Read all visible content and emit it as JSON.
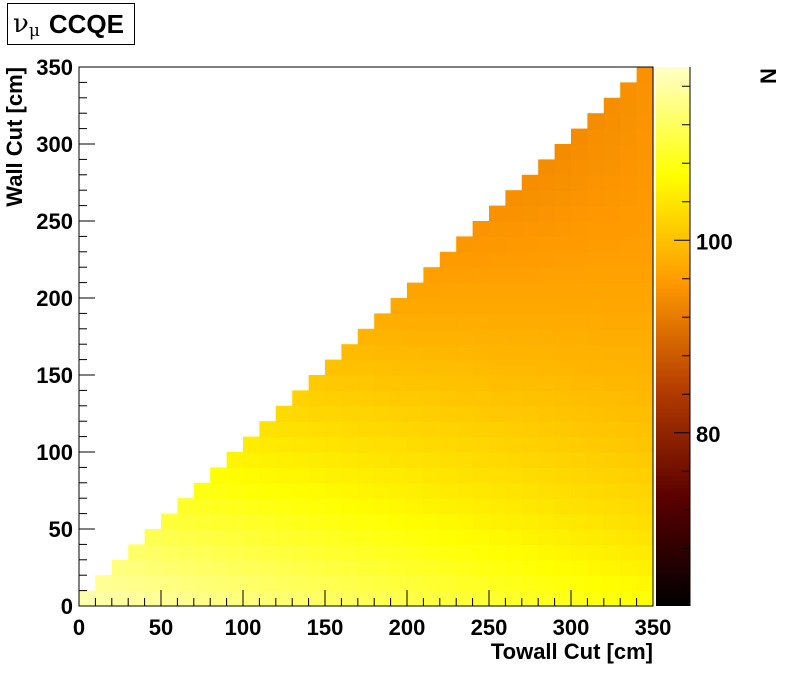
{
  "title": {
    "symbol": "ν",
    "subscript": "μ",
    "text": "CCQE"
  },
  "chart_data": {
    "type": "heatmap",
    "xlabel": "Towall Cut [cm]",
    "ylabel": "Wall Cut [cm]",
    "zlabel": "N",
    "xlim": [
      0,
      350
    ],
    "ylim": [
      0,
      350
    ],
    "zlim": [
      62,
      118
    ],
    "x_ticks": [
      0,
      50,
      100,
      150,
      200,
      250,
      300,
      350
    ],
    "y_ticks": [
      0,
      50,
      100,
      150,
      200,
      250,
      300,
      350
    ],
    "z_ticks": [
      80,
      100
    ],
    "x_tick_labels": [
      "0",
      "50",
      "100",
      "150",
      "200",
      "250",
      "300",
      "350"
    ],
    "y_tick_labels": [
      "0",
      "50",
      "100",
      "150",
      "200",
      "250",
      "300",
      "350"
    ],
    "z_tick_labels": [
      "80",
      "100"
    ],
    "colormap": "hot (black - dark red - orange - yellow - white)",
    "colormap_stops": [
      "#000000",
      "#5a0000",
      "#b43c00",
      "#ff9900",
      "#ffff00",
      "#ffffc8"
    ],
    "bin_width": 10,
    "region": "upper-left triangle (Wall > Towall) is empty",
    "cell_function": {
      "form": "N = z0 - a*wall - b*towall + c*towall*(wall/350)^1.5",
      "z0": 117,
      "a": 0.1,
      "b": 0.028,
      "c": 0.065
    },
    "grid": false
  }
}
